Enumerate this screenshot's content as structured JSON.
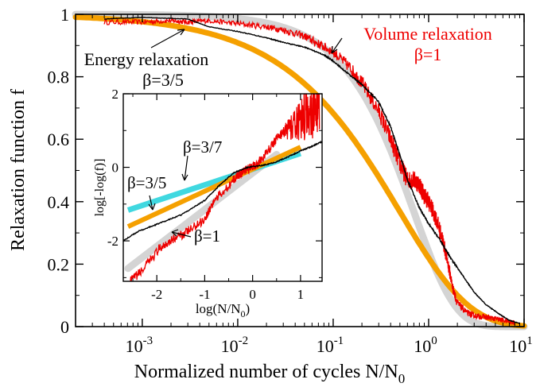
{
  "chart_data": [
    {
      "type": "line",
      "xlabel_main": "Normalized number of cycles N/N",
      "xlabel_sub": "0",
      "ylabel": "Relaxation function f",
      "x_scale": "log",
      "xlim": [
        0.0002,
        10
      ],
      "ylim": [
        0,
        1
      ],
      "x_tick_mantissa": "10",
      "x_ticks": [
        {
          "value": 0.001,
          "exp": "-3"
        },
        {
          "value": 0.01,
          "exp": "-2"
        },
        {
          "value": 0.1,
          "exp": "-1"
        },
        {
          "value": 1,
          "exp": "0"
        },
        {
          "value": 10,
          "exp": "1"
        }
      ],
      "y_ticks": [
        {
          "value": 0,
          "label": "0"
        },
        {
          "value": 0.2,
          "label": "0.2"
        },
        {
          "value": 0.4,
          "label": "0.4"
        },
        {
          "value": 0.6,
          "label": "0.6"
        },
        {
          "value": 0.8,
          "label": "0.8"
        },
        {
          "value": 1,
          "label": "1"
        }
      ],
      "grid": false,
      "series": [
        {
          "color": "#d4d4d4",
          "beta": 1.0,
          "tau": 0.7,
          "kind": "fit"
        },
        {
          "color": "#f5a000",
          "beta": 0.6,
          "tau": 0.5,
          "kind": "fit"
        },
        {
          "color": "#000000",
          "kind": "data",
          "points": [
            [
              0.0004,
              0.985
            ],
            [
              0.001,
              0.99
            ],
            [
              0.003,
              0.985
            ],
            [
              0.005,
              0.96
            ],
            [
              0.01,
              0.945
            ],
            [
              0.02,
              0.925
            ],
            [
              0.03,
              0.91
            ],
            [
              0.05,
              0.895
            ],
            [
              0.08,
              0.87
            ],
            [
              0.1,
              0.85
            ],
            [
              0.15,
              0.805
            ],
            [
              0.2,
              0.775
            ],
            [
              0.3,
              0.72
            ],
            [
              0.4,
              0.64
            ],
            [
              0.5,
              0.55
            ],
            [
              0.6,
              0.47
            ],
            [
              0.8,
              0.38
            ],
            [
              1.0,
              0.33
            ],
            [
              1.3,
              0.28
            ],
            [
              1.7,
              0.22
            ],
            [
              2.2,
              0.17
            ],
            [
              3.0,
              0.11
            ],
            [
              4.0,
              0.07
            ],
            [
              5.5,
              0.04
            ],
            [
              7.0,
              0.02
            ],
            [
              9.0,
              0.01
            ]
          ]
        },
        {
          "color": "#ee0000",
          "kind": "data",
          "points": [
            [
              0.0004,
              0.975
            ],
            [
              0.001,
              0.975
            ],
            [
              0.002,
              0.98
            ],
            [
              0.003,
              0.975
            ],
            [
              0.005,
              0.98
            ],
            [
              0.01,
              0.97
            ],
            [
              0.02,
              0.96
            ],
            [
              0.03,
              0.95
            ],
            [
              0.05,
              0.93
            ],
            [
              0.07,
              0.905
            ],
            [
              0.1,
              0.88
            ],
            [
              0.15,
              0.83
            ],
            [
              0.2,
              0.78
            ],
            [
              0.3,
              0.69
            ],
            [
              0.4,
              0.6
            ],
            [
              0.5,
              0.52
            ],
            [
              0.6,
              0.47
            ],
            [
              0.7,
              0.47
            ],
            [
              0.8,
              0.455
            ],
            [
              0.9,
              0.42
            ],
            [
              1.0,
              0.4
            ],
            [
              1.2,
              0.345
            ],
            [
              1.4,
              0.28
            ],
            [
              1.6,
              0.2
            ],
            [
              1.8,
              0.12
            ],
            [
              2.0,
              0.075
            ],
            [
              2.5,
              0.045
            ],
            [
              3.0,
              0.035
            ],
            [
              4.0,
              0.03
            ],
            [
              5.0,
              0.025
            ],
            [
              6.0,
              0.02
            ],
            [
              8.0,
              0.012
            ]
          ]
        }
      ],
      "annotations": [
        {
          "text": "Volume relaxation",
          "color": "#ee0000"
        },
        {
          "text": "β=1",
          "color": "#ee0000"
        },
        {
          "text": "Energy relaxation",
          "color": "#000000"
        },
        {
          "text": "β=3/5",
          "color": "#000000"
        }
      ]
    },
    {
      "type": "line",
      "inset": true,
      "xlabel_main": "log(N/N",
      "xlabel_sub": "0",
      "xlabel_end": ")",
      "ylabel": "log[-log(f)]",
      "xlim": [
        -2.7,
        1.45
      ],
      "ylim": [
        -3.1,
        2
      ],
      "x_ticks": [
        {
          "value": -2,
          "label": "-2"
        },
        {
          "value": -1,
          "label": "-1"
        },
        {
          "value": 0,
          "label": "0"
        },
        {
          "value": 1,
          "label": "1"
        }
      ],
      "y_ticks": [
        {
          "value": -2,
          "label": "-2"
        },
        {
          "value": 0,
          "label": "0"
        },
        {
          "value": 2,
          "label": "2"
        }
      ],
      "grid": false,
      "series": [
        {
          "color": "#d4d4d4",
          "slope": 1.0,
          "intercept": -0.15,
          "x_range": [
            -2.6,
            0.5
          ]
        },
        {
          "color": "#40d8e0",
          "slope": 0.4286,
          "intercept": -0.05,
          "x_range": [
            -2.6,
            1.0
          ]
        },
        {
          "color": "#f5a000",
          "slope": 0.6,
          "intercept": -0.05,
          "x_range": [
            -2.6,
            1.0
          ]
        },
        {
          "color": "#000000",
          "points": [
            [
              -2.7,
              -2.0
            ],
            [
              -2.4,
              -1.75
            ],
            [
              -2.0,
              -1.55
            ],
            [
              -1.5,
              -1.3
            ],
            [
              -1.0,
              -0.9
            ],
            [
              -0.7,
              -0.5
            ],
            [
              -0.4,
              -0.15
            ],
            [
              -0.1,
              0.0
            ],
            [
              0.2,
              0.05
            ],
            [
              0.5,
              0.15
            ],
            [
              0.8,
              0.32
            ],
            [
              1.0,
              0.45
            ],
            [
              1.2,
              0.55
            ],
            [
              1.45,
              0.7
            ]
          ]
        },
        {
          "color": "#ee0000",
          "points": [
            [
              -2.55,
              -3.1
            ],
            [
              -2.3,
              -2.8
            ],
            [
              -2.0,
              -2.3
            ],
            [
              -1.8,
              -2.05
            ],
            [
              -1.5,
              -1.85
            ],
            [
              -1.3,
              -1.7
            ],
            [
              -1.0,
              -1.4
            ],
            [
              -0.8,
              -0.9
            ],
            [
              -0.5,
              -0.5
            ],
            [
              -0.3,
              -0.2
            ],
            [
              -0.1,
              -0.05
            ],
            [
              0.1,
              0.1
            ],
            [
              0.3,
              0.4
            ],
            [
              0.5,
              0.8
            ],
            [
              0.7,
              1.0
            ],
            [
              0.9,
              1.15
            ],
            [
              1.1,
              1.4
            ],
            [
              1.25,
              1.6
            ],
            [
              1.4,
              1.9
            ]
          ]
        }
      ],
      "annotations": [
        {
          "text": "β=3/7"
        },
        {
          "text": "β=3/5"
        },
        {
          "text": "β=1"
        }
      ]
    }
  ]
}
